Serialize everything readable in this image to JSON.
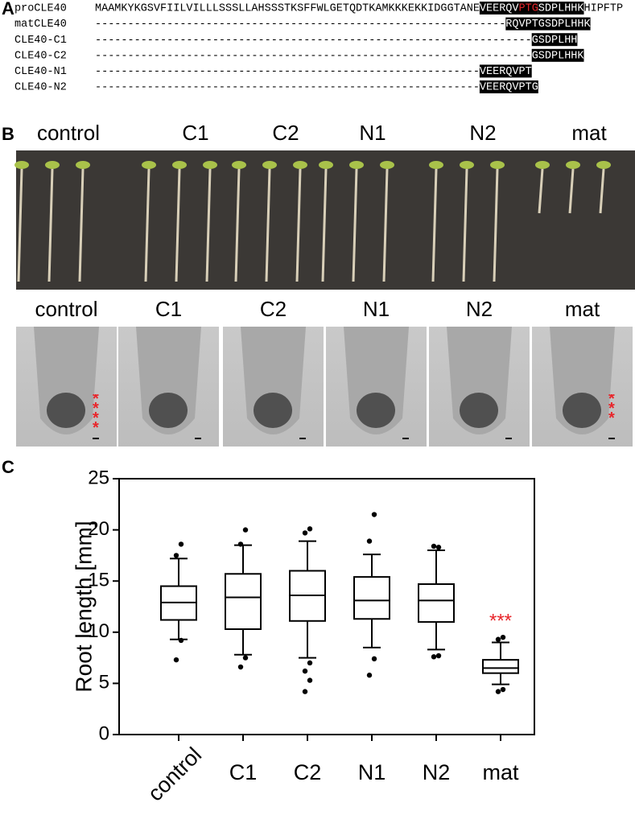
{
  "panel_a": {
    "label": "A",
    "rows": [
      {
        "name": "proCLE40",
        "segments": [
          {
            "text": "MAAMKYKGSVFIILVILLLSSSLLAHSSSTKSFFWLGETQDTKAMKKKEKKIDGGTANE",
            "style": "plain"
          },
          {
            "text": "VEERQV",
            "style": "highlight"
          },
          {
            "text": "PTG",
            "style": "highlight-red"
          },
          {
            "text": "SDPLHHK",
            "style": "highlight"
          },
          {
            "text": "HIPFTP",
            "style": "plain"
          }
        ]
      },
      {
        "name": "matCLE40",
        "segments": [
          {
            "text": "---------------------------------------------------------------",
            "style": "plain"
          },
          {
            "text": "RQVPTGSDPLHHK",
            "style": "highlight"
          }
        ]
      },
      {
        "name": "CLE40-C1",
        "segments": [
          {
            "text": "-------------------------------------------------------------------",
            "style": "plain"
          },
          {
            "text": "GSDPLHH",
            "style": "highlight"
          }
        ]
      },
      {
        "name": "CLE40-C2",
        "segments": [
          {
            "text": "-------------------------------------------------------------------",
            "style": "plain"
          },
          {
            "text": "GSDPLHHK",
            "style": "highlight"
          }
        ]
      },
      {
        "name": "CLE40-N1",
        "segments": [
          {
            "text": "-----------------------------------------------------------",
            "style": "plain"
          },
          {
            "text": "VEERQVPT",
            "style": "highlight"
          }
        ]
      },
      {
        "name": "CLE40-N2",
        "segments": [
          {
            "text": "-----------------------------------------------------------",
            "style": "plain"
          },
          {
            "text": "VEERQVPTG",
            "style": "highlight"
          }
        ]
      }
    ]
  },
  "panel_b": {
    "label": "B",
    "seedling_labels": [
      "control",
      "C1",
      "C2",
      "N1",
      "N2",
      "mat"
    ],
    "root_tip_labels": [
      "control",
      "C1",
      "C2",
      "N1",
      "N2",
      "mat"
    ],
    "root_tip_marks": [
      "****",
      null,
      null,
      null,
      null,
      "***"
    ]
  },
  "panel_c": {
    "label": "C"
  },
  "chart_data": {
    "type": "box",
    "ylabel": "Root length [mm]",
    "categories": [
      "control",
      "C1",
      "C2",
      "N1",
      "N2",
      "mat"
    ],
    "boxes": [
      {
        "whisker_low": 9.3,
        "q1": 11.2,
        "median": 12.9,
        "q3": 14.5,
        "whisker_high": 17.2,
        "outliers": [
          7.3,
          9.2,
          17.5,
          18.6
        ]
      },
      {
        "whisker_low": 7.8,
        "q1": 10.3,
        "median": 13.4,
        "q3": 15.7,
        "whisker_high": 18.5,
        "outliers": [
          6.6,
          7.5,
          18.6,
          20.0
        ]
      },
      {
        "whisker_low": 7.5,
        "q1": 11.1,
        "median": 13.6,
        "q3": 16.0,
        "whisker_high": 18.9,
        "outliers": [
          4.2,
          5.3,
          6.2,
          7.0,
          19.7,
          20.1
        ]
      },
      {
        "whisker_low": 8.5,
        "q1": 11.3,
        "median": 13.1,
        "q3": 15.4,
        "whisker_high": 17.6,
        "outliers": [
          5.8,
          7.4,
          18.9,
          21.5
        ]
      },
      {
        "whisker_low": 8.3,
        "q1": 11.0,
        "median": 13.1,
        "q3": 14.7,
        "whisker_high": 18.0,
        "outliers": [
          7.6,
          7.7,
          18.4,
          18.3
        ]
      },
      {
        "whisker_low": 4.9,
        "q1": 6.0,
        "median": 6.5,
        "q3": 7.3,
        "whisker_high": 9.0,
        "outliers": [
          4.2,
          4.4,
          9.3,
          9.5
        ]
      }
    ],
    "annotations": [
      {
        "text": "***",
        "category": 5,
        "y": 11.3,
        "color": "#e8252a"
      }
    ],
    "ylim": [
      0,
      25
    ],
    "yticks": [
      0,
      5,
      10,
      15,
      20,
      25
    ]
  }
}
